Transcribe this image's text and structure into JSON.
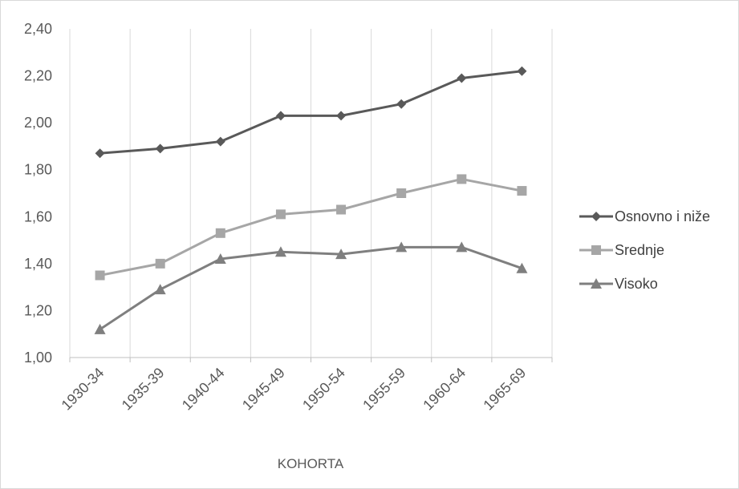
{
  "chart_data": {
    "type": "line",
    "categories": [
      "1930-34",
      "1935-39",
      "1940-44",
      "1945-49",
      "1950-54",
      "1955-59",
      "1960-64",
      "1965-69"
    ],
    "series": [
      {
        "name": "Osnovno i niže",
        "values": [
          1.87,
          1.89,
          1.92,
          2.03,
          2.03,
          2.08,
          2.19,
          2.22
        ],
        "color": "#595959",
        "marker": "diamond"
      },
      {
        "name": "Srednje",
        "values": [
          1.35,
          1.4,
          1.53,
          1.61,
          1.63,
          1.7,
          1.76,
          1.71
        ],
        "color": "#a6a6a6",
        "marker": "square"
      },
      {
        "name": "Visoko",
        "values": [
          1.12,
          1.29,
          1.42,
          1.45,
          1.44,
          1.47,
          1.47,
          1.38
        ],
        "color": "#7f7f7f",
        "marker": "triangle"
      }
    ],
    "y_ticks": [
      "1,00",
      "1,20",
      "1,40",
      "1,60",
      "1,80",
      "2,00",
      "2,20",
      "2,40"
    ],
    "ylim": [
      1.0,
      2.4
    ],
    "xlabel": "KOHORTA",
    "ylabel": "",
    "grid": "vertical",
    "legend_position": "right"
  }
}
